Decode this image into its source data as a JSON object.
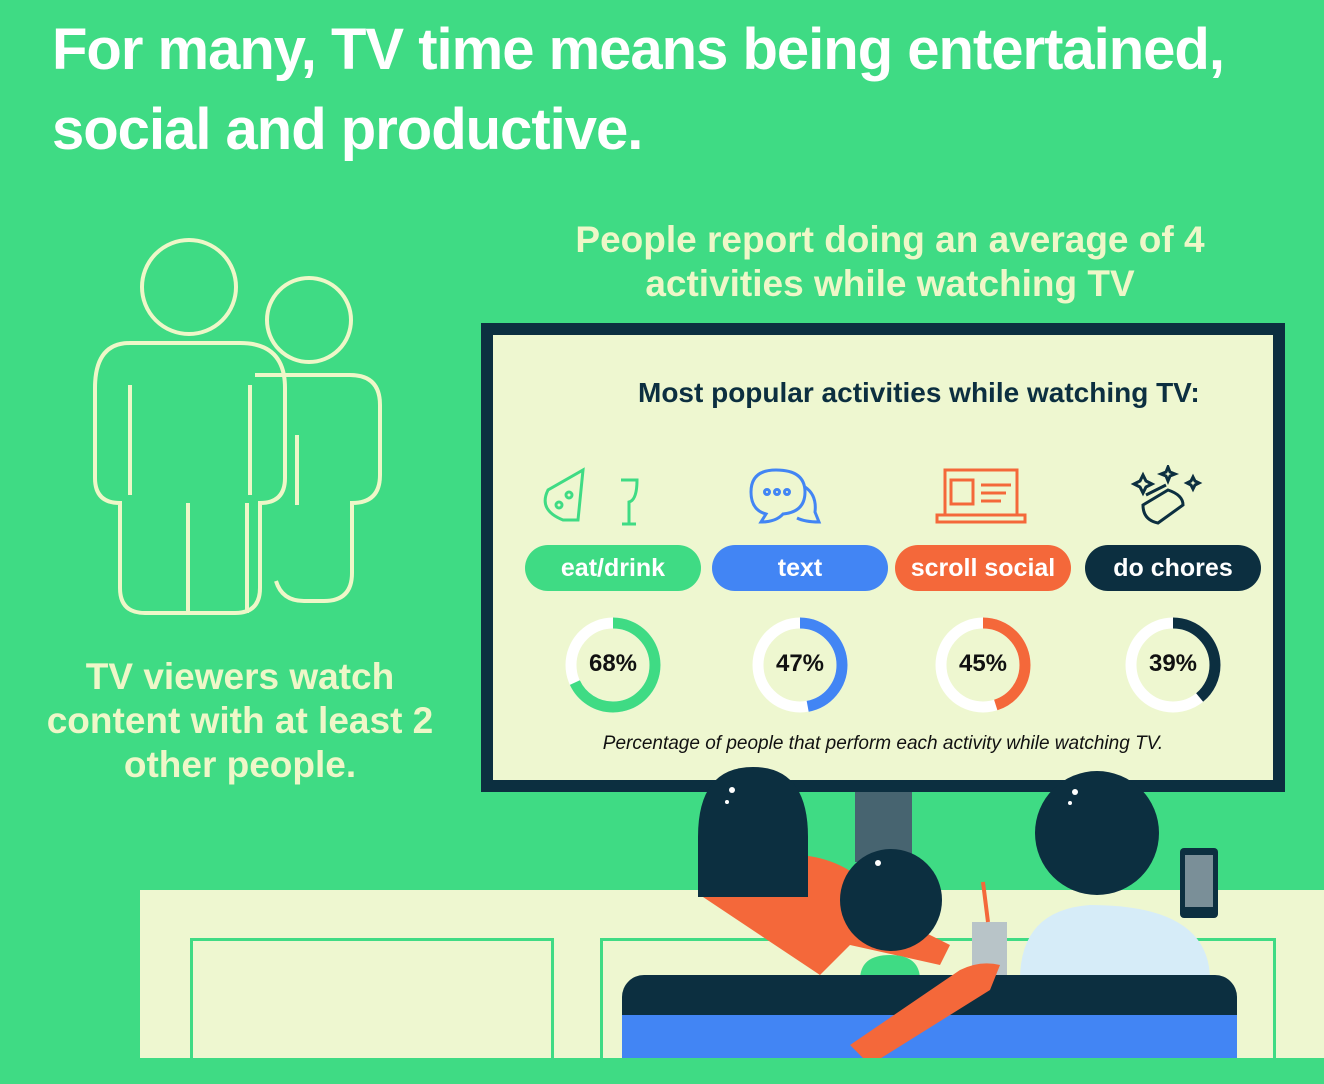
{
  "title": "For many, TV time means being entertained, social and productive.",
  "subhead": "People report doing an average of 4 activities while watching TV",
  "viewers_text": "TV viewers watch content with at least 2 other people.",
  "tv": {
    "title": "Most popular activities while watching TV:",
    "caption": "Percentage of people that perform each activity while watching TV."
  },
  "colors": {
    "background": "#3fdb84",
    "cream": "#eef7d0",
    "navy": "#0c2f40",
    "blue": "#4285f4",
    "orange": "#f4683a",
    "green": "#3fdb84"
  },
  "chart_data": {
    "type": "donut",
    "title": "Most popular activities while watching TV:",
    "categories": [
      "eat/drink",
      "text",
      "scroll social",
      "do chores"
    ],
    "values": [
      68,
      47,
      45,
      39
    ],
    "labels": [
      "68%",
      "47%",
      "45%",
      "39%"
    ],
    "icons": [
      "pizza-wine-icon",
      "chat-bubbles-icon",
      "laptop-profile-icon",
      "sponge-sparkle-icon"
    ],
    "colors": [
      "#3fdb84",
      "#4285f4",
      "#f4683a",
      "#0c2f40"
    ],
    "unit": "%"
  }
}
